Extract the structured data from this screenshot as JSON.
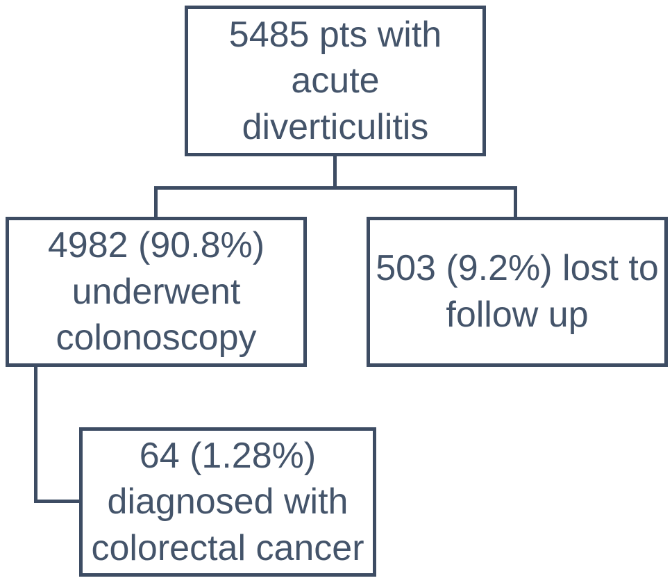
{
  "figure": {
    "type": "flowchart",
    "colors": {
      "line": "#3d4c63",
      "text": "#44546a",
      "background": "#ffffff"
    },
    "nodes": {
      "root": {
        "text": "5485 pts with\nacute\ndiverticulitis",
        "value": 5485,
        "label": "pts with acute diverticulitis"
      },
      "colonoscopy": {
        "text": "4982 (90.8%)\nunderwent\ncolonoscopy",
        "value": 4982,
        "percent": "90.8%"
      },
      "lost_follow_up": {
        "text": "503 (9.2%) lost to\nfollow up",
        "value": 503,
        "percent": "9.2%"
      },
      "colorectal_cancer": {
        "text": "64 (1.28%)\ndiagnosed with\ncolorectal cancer",
        "value": 64,
        "percent": "1.28%"
      }
    },
    "edges": [
      {
        "from": "root",
        "to": "colonoscopy"
      },
      {
        "from": "root",
        "to": "lost_follow_up"
      },
      {
        "from": "colonoscopy",
        "to": "colorectal_cancer"
      }
    ]
  }
}
